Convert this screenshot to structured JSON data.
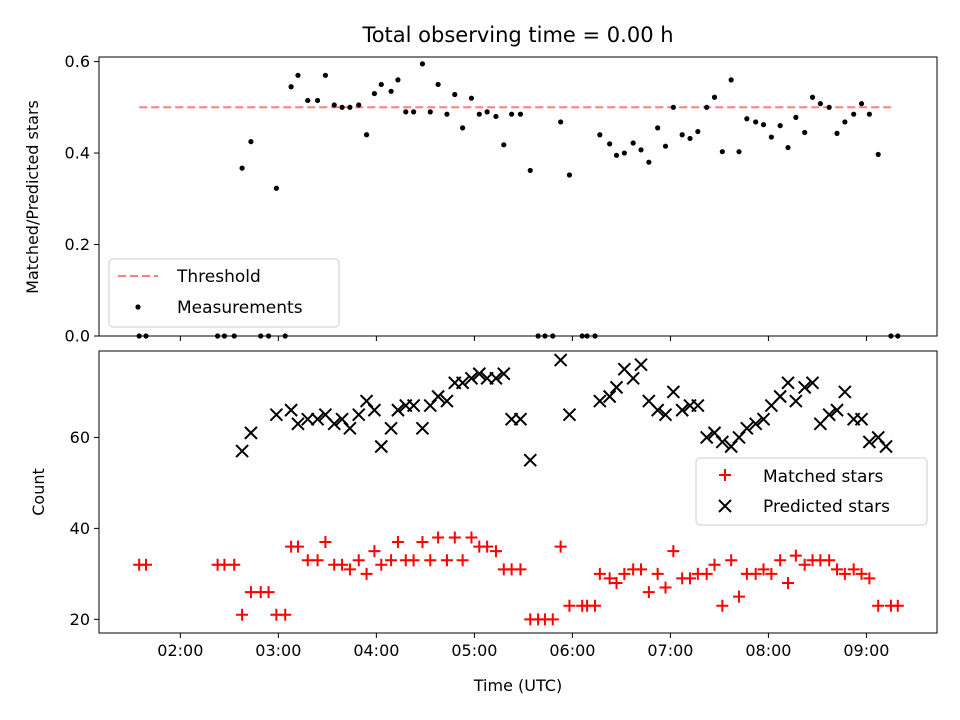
{
  "title": "Total observing time = 0.00 h",
  "chart_data": [
    {
      "type": "scatter",
      "ylabel": "Matched/Predicted stars",
      "xlim": [
        1.17,
        9.72
      ],
      "ylim": [
        0,
        0.61
      ],
      "yticks": [
        0.0,
        0.2,
        0.4,
        0.6
      ],
      "ytick_labels": [
        "0.0",
        "0.2",
        "0.4",
        "0.6"
      ],
      "legend_position": "lower-left",
      "colors": {
        "threshold": "#ff7f7f",
        "measurements": "#000000"
      },
      "threshold": {
        "name": "Threshold",
        "value": 0.5,
        "x_range": [
          1.58,
          9.25
        ]
      },
      "series": [
        {
          "name": "Measurements",
          "points": [
            [
              1.58,
              0.0
            ],
            [
              1.65,
              0.0
            ],
            [
              2.38,
              0.0
            ],
            [
              2.45,
              0.0
            ],
            [
              2.55,
              0.0
            ],
            [
              2.63,
              0.367
            ],
            [
              2.72,
              0.425
            ],
            [
              2.82,
              0.0
            ],
            [
              2.9,
              0.0
            ],
            [
              2.98,
              0.323
            ],
            [
              3.07,
              0.0
            ],
            [
              3.13,
              0.545
            ],
            [
              3.2,
              0.57
            ],
            [
              3.3,
              0.515
            ],
            [
              3.4,
              0.515
            ],
            [
              3.48,
              0.57
            ],
            [
              3.57,
              0.505
            ],
            [
              3.65,
              0.5
            ],
            [
              3.73,
              0.5
            ],
            [
              3.82,
              0.505
            ],
            [
              3.9,
              0.44
            ],
            [
              3.98,
              0.53
            ],
            [
              4.05,
              0.55
            ],
            [
              4.15,
              0.535
            ],
            [
              4.22,
              0.56
            ],
            [
              4.3,
              0.49
            ],
            [
              4.38,
              0.49
            ],
            [
              4.47,
              0.595
            ],
            [
              4.55,
              0.49
            ],
            [
              4.63,
              0.55
            ],
            [
              4.72,
              0.485
            ],
            [
              4.8,
              0.528
            ],
            [
              4.88,
              0.455
            ],
            [
              4.97,
              0.52
            ],
            [
              5.05,
              0.485
            ],
            [
              5.13,
              0.49
            ],
            [
              5.22,
              0.48
            ],
            [
              5.3,
              0.418
            ],
            [
              5.38,
              0.485
            ],
            [
              5.47,
              0.485
            ],
            [
              5.57,
              0.362
            ],
            [
              5.65,
              0.0
            ],
            [
              5.72,
              0.0
            ],
            [
              5.8,
              0.0
            ],
            [
              5.88,
              0.468
            ],
            [
              5.97,
              0.352
            ],
            [
              6.1,
              0.0
            ],
            [
              6.15,
              0.0
            ],
            [
              6.23,
              0.0
            ],
            [
              6.28,
              0.44
            ],
            [
              6.38,
              0.42
            ],
            [
              6.45,
              0.395
            ],
            [
              6.53,
              0.4
            ],
            [
              6.62,
              0.422
            ],
            [
              6.7,
              0.407
            ],
            [
              6.78,
              0.38
            ],
            [
              6.87,
              0.455
            ],
            [
              6.95,
              0.415
            ],
            [
              7.03,
              0.5
            ],
            [
              7.12,
              0.44
            ],
            [
              7.2,
              0.432
            ],
            [
              7.28,
              0.447
            ],
            [
              7.37,
              0.5
            ],
            [
              7.45,
              0.522
            ],
            [
              7.53,
              0.403
            ],
            [
              7.62,
              0.56
            ],
            [
              7.7,
              0.403
            ],
            [
              7.78,
              0.475
            ],
            [
              7.87,
              0.468
            ],
            [
              7.95,
              0.462
            ],
            [
              8.03,
              0.435
            ],
            [
              8.12,
              0.46
            ],
            [
              8.2,
              0.412
            ],
            [
              8.28,
              0.478
            ],
            [
              8.37,
              0.445
            ],
            [
              8.45,
              0.522
            ],
            [
              8.53,
              0.508
            ],
            [
              8.62,
              0.5
            ],
            [
              8.7,
              0.443
            ],
            [
              8.78,
              0.468
            ],
            [
              8.87,
              0.485
            ],
            [
              8.95,
              0.508
            ],
            [
              9.03,
              0.485
            ],
            [
              9.12,
              0.397
            ],
            [
              9.25,
              0.0
            ],
            [
              9.32,
              0.0
            ]
          ]
        }
      ]
    },
    {
      "type": "scatter",
      "xlabel": "Time (UTC)",
      "ylabel": "Count",
      "xlim": [
        1.17,
        9.72
      ],
      "ylim": [
        17,
        79
      ],
      "yticks": [
        20,
        40,
        60
      ],
      "ytick_labels": [
        "20",
        "40",
        "60"
      ],
      "xticks": [
        2,
        3,
        4,
        5,
        6,
        7,
        8,
        9
      ],
      "xtick_labels": [
        "02:00",
        "03:00",
        "04:00",
        "05:00",
        "06:00",
        "07:00",
        "08:00",
        "09:00"
      ],
      "legend_position": "right",
      "colors": {
        "matched": "#ff0000",
        "predicted": "#000000"
      },
      "series": [
        {
          "name": "Matched stars",
          "points": [
            [
              1.58,
              32
            ],
            [
              1.65,
              32
            ],
            [
              2.38,
              32
            ],
            [
              2.45,
              32
            ],
            [
              2.55,
              32
            ],
            [
              2.63,
              21
            ],
            [
              2.72,
              26
            ],
            [
              2.82,
              26
            ],
            [
              2.9,
              26
            ],
            [
              2.98,
              21
            ],
            [
              3.07,
              21
            ],
            [
              3.13,
              36
            ],
            [
              3.2,
              36
            ],
            [
              3.3,
              33
            ],
            [
              3.4,
              33
            ],
            [
              3.48,
              37
            ],
            [
              3.57,
              32
            ],
            [
              3.65,
              32
            ],
            [
              3.73,
              31
            ],
            [
              3.82,
              33
            ],
            [
              3.9,
              30
            ],
            [
              3.98,
              35
            ],
            [
              4.05,
              32
            ],
            [
              4.15,
              33
            ],
            [
              4.22,
              37
            ],
            [
              4.3,
              33
            ],
            [
              4.38,
              33
            ],
            [
              4.47,
              37
            ],
            [
              4.55,
              33
            ],
            [
              4.63,
              38
            ],
            [
              4.72,
              33
            ],
            [
              4.8,
              38
            ],
            [
              4.88,
              33
            ],
            [
              4.97,
              38
            ],
            [
              5.05,
              36
            ],
            [
              5.13,
              36
            ],
            [
              5.22,
              35
            ],
            [
              5.3,
              31
            ],
            [
              5.38,
              31
            ],
            [
              5.47,
              31
            ],
            [
              5.57,
              20
            ],
            [
              5.65,
              20
            ],
            [
              5.72,
              20
            ],
            [
              5.8,
              20
            ],
            [
              5.88,
              36
            ],
            [
              5.97,
              23
            ],
            [
              6.1,
              23
            ],
            [
              6.15,
              23
            ],
            [
              6.23,
              23
            ],
            [
              6.28,
              30
            ],
            [
              6.38,
              29
            ],
            [
              6.45,
              28
            ],
            [
              6.53,
              30
            ],
            [
              6.62,
              31
            ],
            [
              6.7,
              31
            ],
            [
              6.78,
              26
            ],
            [
              6.87,
              30
            ],
            [
              6.95,
              27
            ],
            [
              7.03,
              35
            ],
            [
              7.12,
              29
            ],
            [
              7.2,
              29
            ],
            [
              7.28,
              30
            ],
            [
              7.37,
              30
            ],
            [
              7.45,
              32
            ],
            [
              7.53,
              23
            ],
            [
              7.62,
              33
            ],
            [
              7.7,
              25
            ],
            [
              7.78,
              30
            ],
            [
              7.87,
              30
            ],
            [
              7.95,
              31
            ],
            [
              8.03,
              30
            ],
            [
              8.12,
              33
            ],
            [
              8.2,
              28
            ],
            [
              8.28,
              34
            ],
            [
              8.37,
              32
            ],
            [
              8.45,
              33
            ],
            [
              8.53,
              33
            ],
            [
              8.62,
              33
            ],
            [
              8.7,
              31
            ],
            [
              8.78,
              30
            ],
            [
              8.87,
              31
            ],
            [
              8.95,
              30
            ],
            [
              9.03,
              29
            ],
            [
              9.12,
              23
            ],
            [
              9.25,
              23
            ],
            [
              9.32,
              23
            ]
          ]
        },
        {
          "name": "Predicted stars",
          "points": [
            [
              2.63,
              57
            ],
            [
              2.72,
              61
            ],
            [
              2.98,
              65
            ],
            [
              3.13,
              66
            ],
            [
              3.2,
              63
            ],
            [
              3.3,
              64
            ],
            [
              3.4,
              64
            ],
            [
              3.48,
              65
            ],
            [
              3.57,
              63
            ],
            [
              3.65,
              64
            ],
            [
              3.73,
              62
            ],
            [
              3.82,
              65
            ],
            [
              3.9,
              68
            ],
            [
              3.98,
              66
            ],
            [
              4.05,
              58
            ],
            [
              4.15,
              62
            ],
            [
              4.22,
              66
            ],
            [
              4.3,
              67
            ],
            [
              4.38,
              67
            ],
            [
              4.47,
              62
            ],
            [
              4.55,
              67
            ],
            [
              4.63,
              69
            ],
            [
              4.72,
              68
            ],
            [
              4.8,
              72
            ],
            [
              4.88,
              72
            ],
            [
              4.97,
              73
            ],
            [
              5.05,
              74
            ],
            [
              5.13,
              73
            ],
            [
              5.22,
              73
            ],
            [
              5.3,
              74
            ],
            [
              5.38,
              64
            ],
            [
              5.47,
              64
            ],
            [
              5.57,
              55
            ],
            [
              5.88,
              77
            ],
            [
              5.97,
              65
            ],
            [
              6.28,
              68
            ],
            [
              6.38,
              69
            ],
            [
              6.45,
              71
            ],
            [
              6.53,
              75
            ],
            [
              6.62,
              73
            ],
            [
              6.7,
              76
            ],
            [
              6.78,
              68
            ],
            [
              6.87,
              66
            ],
            [
              6.95,
              65
            ],
            [
              7.03,
              70
            ],
            [
              7.12,
              66
            ],
            [
              7.2,
              67
            ],
            [
              7.28,
              67
            ],
            [
              7.37,
              60
            ],
            [
              7.45,
              61
            ],
            [
              7.53,
              59
            ],
            [
              7.62,
              58
            ],
            [
              7.7,
              60
            ],
            [
              7.78,
              62
            ],
            [
              7.87,
              63
            ],
            [
              7.95,
              64
            ],
            [
              8.03,
              67
            ],
            [
              8.12,
              69
            ],
            [
              8.2,
              72
            ],
            [
              8.28,
              68
            ],
            [
              8.37,
              71
            ],
            [
              8.45,
              72
            ],
            [
              8.53,
              63
            ],
            [
              8.62,
              65
            ],
            [
              8.7,
              66
            ],
            [
              8.78,
              70
            ],
            [
              8.87,
              64
            ],
            [
              8.95,
              64
            ],
            [
              9.03,
              59
            ],
            [
              9.12,
              60
            ],
            [
              9.2,
              58
            ]
          ]
        }
      ]
    }
  ]
}
